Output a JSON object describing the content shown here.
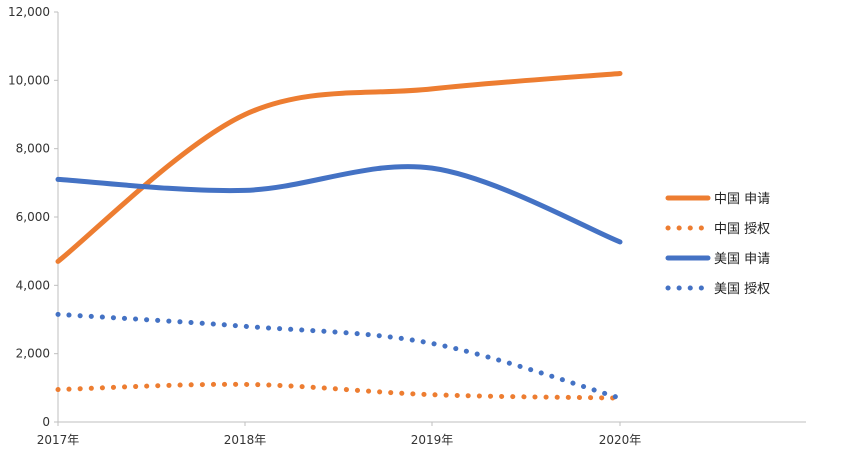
{
  "chart_data": {
    "type": "line",
    "categories": [
      "2017年",
      "2018年",
      "2019年",
      "2020年"
    ],
    "ylim": [
      0,
      12000
    ],
    "yticks": [
      0,
      2000,
      4000,
      6000,
      8000,
      10000,
      12000
    ],
    "ytick_labels": [
      "0",
      "2,000",
      "4,000",
      "6,000",
      "8,000",
      "10,000",
      "12,000"
    ],
    "grid": false,
    "legend_position": "right",
    "series": [
      {
        "name": "中国 申请",
        "values": [
          4700,
          9000,
          9750,
          10200
        ],
        "color": "#ED7D31",
        "style": "solid"
      },
      {
        "name": "中国 授权",
        "values": [
          950,
          1100,
          800,
          700
        ],
        "color": "#ED7D31",
        "style": "dotted"
      },
      {
        "name": "美国 申请",
        "values": [
          7100,
          6780,
          7430,
          5270
        ],
        "color": "#4472C4",
        "style": "solid"
      },
      {
        "name": "美国 授权",
        "values": [
          3150,
          2800,
          2300,
          700
        ],
        "color": "#4472C4",
        "style": "dotted"
      }
    ]
  }
}
